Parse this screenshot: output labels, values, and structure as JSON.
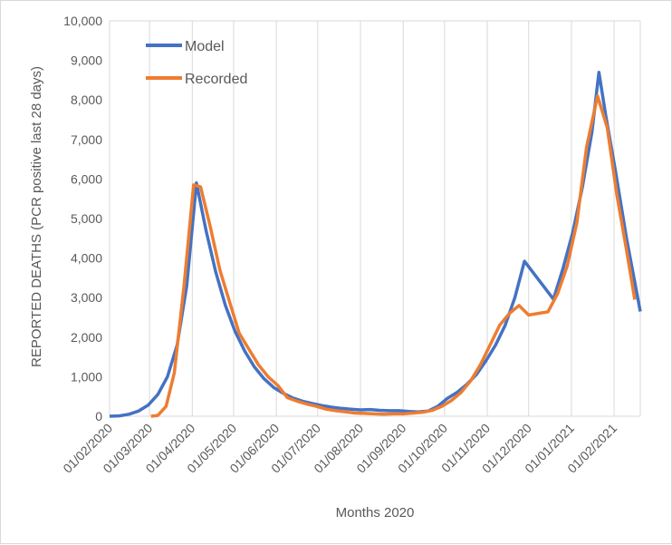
{
  "chart_data": {
    "type": "line",
    "title": "",
    "xlabel": "Months 2020",
    "ylabel": "REPORTED DEATHS (PCR positive last 28 days)",
    "ylim": [
      0,
      10000
    ],
    "y_ticks": [
      "0",
      "1,000",
      "2,000",
      "3,000",
      "4,000",
      "5,000",
      "6,000",
      "7,000",
      "8,000",
      "9,000",
      "10,000"
    ],
    "x_range": [
      "2020-02-01",
      "2021-02-20"
    ],
    "x_ticks": [
      {
        "date": "2020-02-01",
        "label": "01/02/2020"
      },
      {
        "date": "2020-03-01",
        "label": "01/03/2020"
      },
      {
        "date": "2020-04-01",
        "label": "01/04/2020"
      },
      {
        "date": "2020-05-01",
        "label": "01/05/2020"
      },
      {
        "date": "2020-06-01",
        "label": "01/06/2020"
      },
      {
        "date": "2020-07-01",
        "label": "01/07/2020"
      },
      {
        "date": "2020-08-01",
        "label": "01/08/2020"
      },
      {
        "date": "2020-09-01",
        "label": "01/09/2020"
      },
      {
        "date": "2020-10-01",
        "label": "01/10/2020"
      },
      {
        "date": "2020-11-01",
        "label": "01/11/2020"
      },
      {
        "date": "2020-12-01",
        "label": "01/12/2020"
      },
      {
        "date": "2021-01-01",
        "label": "01/01/2021"
      },
      {
        "date": "2021-02-01",
        "label": "01/02/2021"
      }
    ],
    "grid": "vertical",
    "legend": "top-left",
    "series": [
      {
        "name": "Model",
        "color": "#4472C4",
        "points": [
          [
            "2020-02-01",
            0
          ],
          [
            "2020-02-08",
            10
          ],
          [
            "2020-02-15",
            50
          ],
          [
            "2020-02-22",
            130
          ],
          [
            "2020-02-29",
            280
          ],
          [
            "2020-03-07",
            550
          ],
          [
            "2020-03-14",
            1000
          ],
          [
            "2020-03-21",
            1800
          ],
          [
            "2020-03-28",
            3300
          ],
          [
            "2020-04-04",
            5900
          ],
          [
            "2020-04-11",
            4700
          ],
          [
            "2020-04-18",
            3650
          ],
          [
            "2020-04-25",
            2800
          ],
          [
            "2020-05-02",
            2150
          ],
          [
            "2020-05-09",
            1650
          ],
          [
            "2020-05-16",
            1250
          ],
          [
            "2020-05-23",
            950
          ],
          [
            "2020-05-30",
            730
          ],
          [
            "2020-06-06",
            580
          ],
          [
            "2020-06-13",
            460
          ],
          [
            "2020-06-20",
            380
          ],
          [
            "2020-06-27",
            320
          ],
          [
            "2020-07-04",
            270
          ],
          [
            "2020-07-11",
            230
          ],
          [
            "2020-07-18",
            200
          ],
          [
            "2020-07-25",
            180
          ],
          [
            "2020-08-01",
            160
          ],
          [
            "2020-08-08",
            170
          ],
          [
            "2020-08-15",
            150
          ],
          [
            "2020-08-22",
            140
          ],
          [
            "2020-08-29",
            140
          ],
          [
            "2020-09-05",
            120
          ],
          [
            "2020-09-12",
            110
          ],
          [
            "2020-09-19",
            130
          ],
          [
            "2020-09-26",
            250
          ],
          [
            "2020-10-03",
            450
          ],
          [
            "2020-10-10",
            600
          ],
          [
            "2020-10-17",
            800
          ],
          [
            "2020-10-24",
            1050
          ],
          [
            "2020-10-31",
            1400
          ],
          [
            "2020-11-07",
            1800
          ],
          [
            "2020-11-14",
            2300
          ],
          [
            "2020-11-21",
            3000
          ],
          [
            "2020-11-28",
            3920
          ],
          [
            "2020-12-19",
            2960
          ],
          [
            "2020-12-26",
            3750
          ],
          [
            "2021-01-02",
            4650
          ],
          [
            "2021-01-09",
            5800
          ],
          [
            "2021-01-16",
            7200
          ],
          [
            "2021-01-21",
            8700
          ],
          [
            "2021-01-26",
            7600
          ],
          [
            "2021-02-02",
            6200
          ],
          [
            "2021-02-10",
            4500
          ],
          [
            "2021-02-20",
            2650
          ]
        ]
      },
      {
        "name": "Recorded",
        "color": "#ED7D31",
        "points": [
          [
            "2020-03-02",
            0
          ],
          [
            "2020-03-07",
            20
          ],
          [
            "2020-03-13",
            250
          ],
          [
            "2020-03-19",
            1100
          ],
          [
            "2020-03-26",
            3300
          ],
          [
            "2020-04-02",
            5850
          ],
          [
            "2020-04-07",
            5800
          ],
          [
            "2020-04-14",
            4800
          ],
          [
            "2020-04-21",
            3700
          ],
          [
            "2020-04-28",
            2900
          ],
          [
            "2020-05-05",
            2100
          ],
          [
            "2020-05-12",
            1700
          ],
          [
            "2020-05-19",
            1300
          ],
          [
            "2020-05-26",
            1000
          ],
          [
            "2020-06-02",
            780
          ],
          [
            "2020-06-09",
            470
          ],
          [
            "2020-06-16",
            380
          ],
          [
            "2020-06-23",
            310
          ],
          [
            "2020-06-30",
            250
          ],
          [
            "2020-07-07",
            180
          ],
          [
            "2020-07-14",
            140
          ],
          [
            "2020-07-21",
            110
          ],
          [
            "2020-07-28",
            80
          ],
          [
            "2020-08-04",
            70
          ],
          [
            "2020-08-11",
            60
          ],
          [
            "2020-08-18",
            50
          ],
          [
            "2020-08-25",
            60
          ],
          [
            "2020-09-01",
            60
          ],
          [
            "2020-09-08",
            80
          ],
          [
            "2020-09-15",
            100
          ],
          [
            "2020-09-22",
            150
          ],
          [
            "2020-09-29",
            250
          ],
          [
            "2020-10-06",
            400
          ],
          [
            "2020-10-13",
            600
          ],
          [
            "2020-10-20",
            900
          ],
          [
            "2020-10-27",
            1300
          ],
          [
            "2020-11-03",
            1800
          ],
          [
            "2020-11-10",
            2300
          ],
          [
            "2020-11-17",
            2600
          ],
          [
            "2020-11-24",
            2800
          ],
          [
            "2020-12-01",
            2560
          ],
          [
            "2020-12-15",
            2640
          ],
          [
            "2020-12-22",
            3100
          ],
          [
            "2020-12-29",
            3800
          ],
          [
            "2021-01-05",
            4900
          ],
          [
            "2021-01-12",
            6800
          ],
          [
            "2021-01-20",
            8100
          ],
          [
            "2021-01-27",
            7300
          ],
          [
            "2021-02-03",
            5600
          ],
          [
            "2021-02-10",
            4200
          ],
          [
            "2021-02-16",
            2950
          ]
        ]
      }
    ]
  }
}
